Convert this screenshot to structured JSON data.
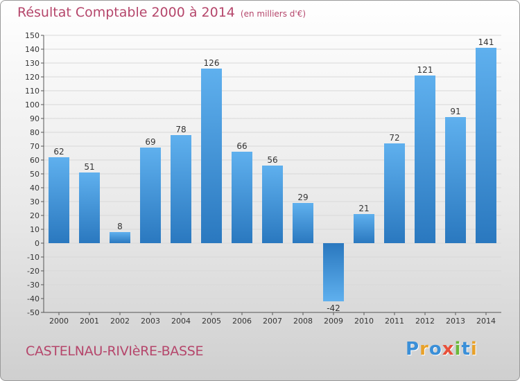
{
  "title": {
    "main": "Résultat Comptable 2000 à 2014",
    "unit": "(en milliers d'€)"
  },
  "commune": "CASTELNAU-RIVIèRE-BASSE",
  "logo": {
    "text": "Proxiti",
    "letters": [
      {
        "ch": "P",
        "color": "#3a8fd8"
      },
      {
        "ch": "r",
        "color": "#e8a12a"
      },
      {
        "ch": "o",
        "color": "#3a8fd8"
      },
      {
        "ch": "x",
        "color": "#e8503a"
      },
      {
        "ch": "i",
        "color": "#6bb83a"
      },
      {
        "ch": "t",
        "color": "#3a8fd8"
      },
      {
        "ch": "i",
        "color": "#e8a12a"
      }
    ]
  },
  "colors": {
    "bar_light": "#5fb0ee",
    "bar_dark": "#2a78bf",
    "axis": "#555555",
    "grid": "#d8d8d8",
    "title": "#b5466b"
  },
  "chart_data": {
    "type": "bar",
    "categories": [
      "2000",
      "2001",
      "2002",
      "2003",
      "2004",
      "2005",
      "2006",
      "2007",
      "2008",
      "2009",
      "2010",
      "2011",
      "2012",
      "2013",
      "2014"
    ],
    "values": [
      62,
      51,
      8,
      69,
      78,
      126,
      66,
      56,
      29,
      -42,
      21,
      72,
      121,
      91,
      141
    ],
    "title": "Résultat Comptable 2000 à 2014",
    "xlabel": "",
    "ylabel": "",
    "ylim": [
      -50,
      150
    ],
    "ytick_step": 10,
    "grid": true
  }
}
